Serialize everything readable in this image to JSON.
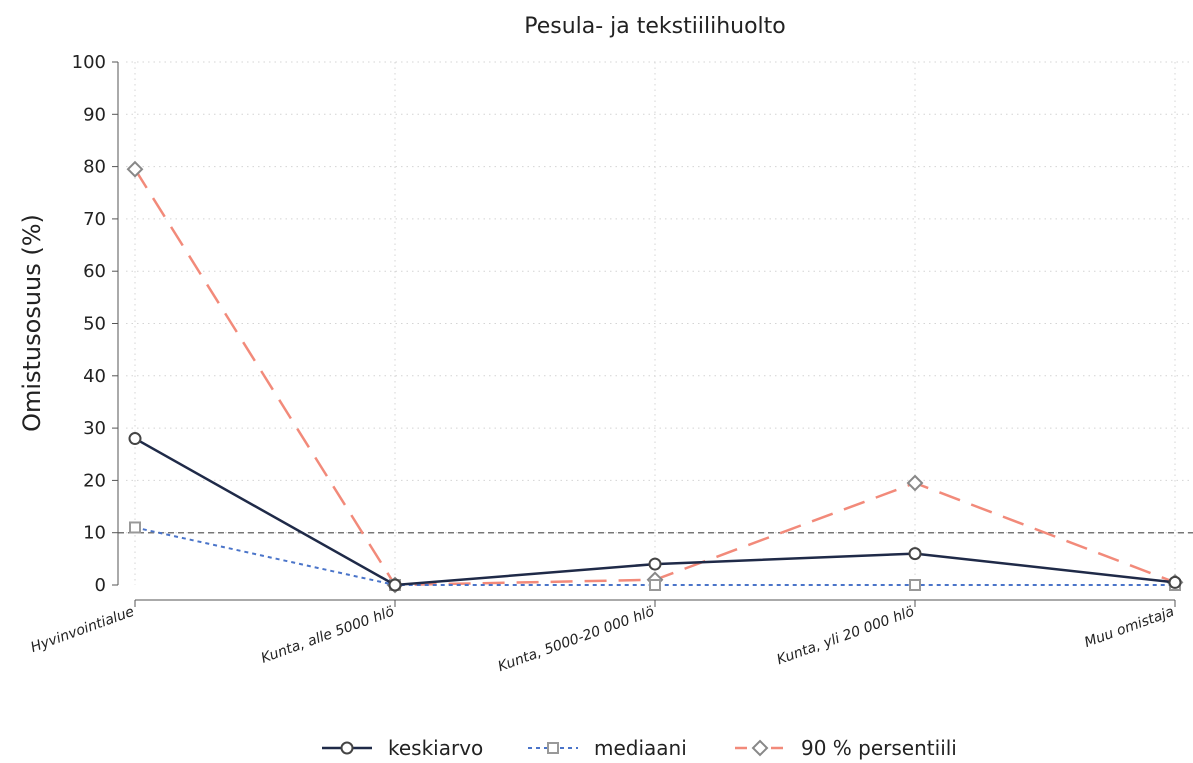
{
  "chart_data": {
    "type": "line",
    "title": "Pesula- ja tekstiilihuolto",
    "ylabel": "Omistusosuus (%)",
    "xlabel": "",
    "categories": [
      "Hyvinvointialue",
      "Kunta, alle 5000 hlö",
      "Kunta, 5000-20 000 hlö",
      "Kunta, yli 20 000 hlö",
      "Muu omistaja"
    ],
    "ylim": [
      0,
      100
    ],
    "yticks": [
      "0",
      "10",
      "20",
      "30",
      "40",
      "50",
      "60",
      "70",
      "80",
      "90",
      "100"
    ],
    "reference_line": 10,
    "grid": true,
    "legend_position": "bottom",
    "series": [
      {
        "name": "keskiarvo",
        "values": [
          28,
          0,
          4,
          6,
          0.5
        ],
        "color": "#1f2a48",
        "dash": "solid",
        "marker": "circle"
      },
      {
        "name": "mediaani",
        "values": [
          11,
          0,
          0,
          0,
          0
        ],
        "color": "#4a74c9",
        "dash": "dotted",
        "marker": "square"
      },
      {
        "name": "90 % persentiili",
        "values": [
          79.5,
          0,
          1,
          19.5,
          0.5
        ],
        "color": "#f28a7a",
        "dash": "longdash",
        "marker": "diamond"
      }
    ]
  }
}
